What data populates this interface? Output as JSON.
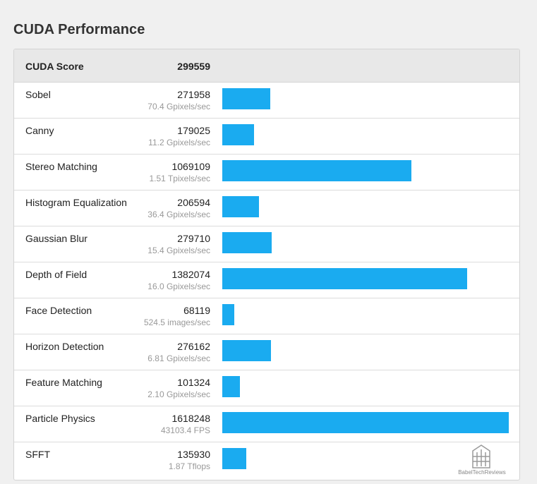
{
  "page_title": "CUDA Performance",
  "header": {
    "label": "CUDA Score",
    "value": "299559"
  },
  "watermark_text": "BabelTechReviews",
  "bar_color": "#1aabf0",
  "chart_data": {
    "type": "bar",
    "orientation": "horizontal",
    "title": "CUDA Performance",
    "categories": [
      "Sobel",
      "Canny",
      "Stereo Matching",
      "Histogram Equalization",
      "Gaussian Blur",
      "Depth of Field",
      "Face Detection",
      "Horizon Detection",
      "Feature Matching",
      "Particle Physics",
      "SFFT"
    ],
    "values": [
      271958,
      179025,
      1069109,
      206594,
      279710,
      1382074,
      68119,
      276162,
      101324,
      1618248,
      135930
    ],
    "score_labels": [
      "271958",
      "179025",
      "1069109",
      "206594",
      "279710",
      "1382074",
      "68119",
      "276162",
      "101324",
      "1618248",
      "135930"
    ],
    "rates": [
      "70.4 Gpixels/sec",
      "11.2 Gpixels/sec",
      "1.51 Tpixels/sec",
      "36.4 Gpixels/sec",
      "15.4 Gpixels/sec",
      "16.0 Gpixels/sec",
      "524.5 images/sec",
      "6.81 Gpixels/sec",
      "2.10 Gpixels/sec",
      "43103.4 FPS",
      "1.87 Tflops"
    ],
    "xlim": [
      0,
      1618248
    ]
  }
}
